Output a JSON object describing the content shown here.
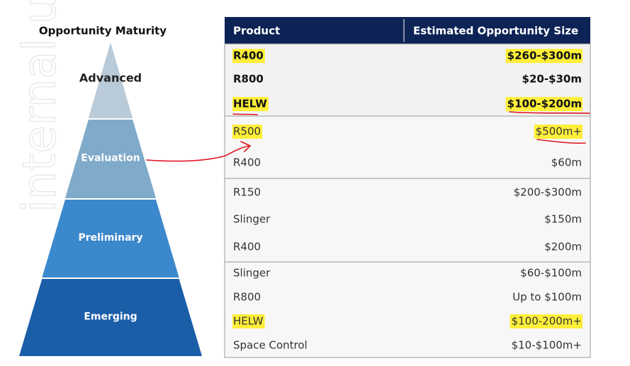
{
  "watermark": "internal use only",
  "pyramid": {
    "title": "Opportunity Maturity",
    "levels": [
      "Advanced",
      "Evaluation",
      "Preliminary",
      "Emerging"
    ]
  },
  "table": {
    "headers": [
      "Product",
      "Estimated Opportunity Size"
    ],
    "groups": [
      {
        "bold": true,
        "rows": [
          {
            "product": "R400",
            "size": "$260-$300m",
            "highlight": true
          },
          {
            "product": "R800",
            "size": "$20-$30m",
            "highlight": false
          },
          {
            "product": "HELW",
            "size": "$100-$200m",
            "highlight": true
          }
        ]
      },
      {
        "bold": false,
        "rows": [
          {
            "product": "R500",
            "size": "$500m+",
            "highlight": true
          },
          {
            "product": "R400",
            "size": "$60m",
            "highlight": false
          }
        ]
      },
      {
        "bold": false,
        "rows": [
          {
            "product": "R150",
            "size": "$200-$300m",
            "highlight": false
          },
          {
            "product": "Slinger",
            "size": "$150m",
            "highlight": false
          },
          {
            "product": "R400",
            "size": "$200m",
            "highlight": false
          }
        ]
      },
      {
        "bold": false,
        "rows": [
          {
            "product": "Slinger",
            "size": "$60-$100m",
            "highlight": false
          },
          {
            "product": "R800",
            "size": "Up to $100m",
            "highlight": false
          },
          {
            "product": "HELW",
            "size": "$100-200m+",
            "highlight": true
          },
          {
            "product": "Space Control",
            "size": "$10-$100m+",
            "highlight": false
          }
        ]
      }
    ]
  }
}
